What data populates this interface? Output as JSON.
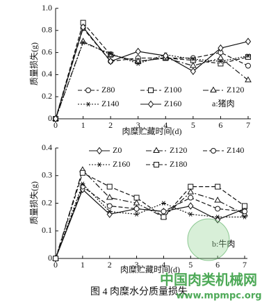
{
  "chart_data": [
    {
      "type": "line",
      "x_label": "肉糜贮藏时间(d)",
      "y_label": "质量损失(g)",
      "annotation": "a:猪肉",
      "x": [
        0,
        1,
        2,
        3,
        4,
        5,
        6,
        7
      ],
      "xlim": [
        0,
        7
      ],
      "xticks": [
        0,
        1,
        2,
        3,
        4,
        5,
        6,
        7
      ],
      "ylim": [
        0,
        1
      ],
      "yticks": [
        0,
        0.2,
        0.4,
        0.6,
        0.8,
        {
          "value": 1,
          "label": "1.0"
        }
      ],
      "series": [
        {
          "name": "Z80",
          "color": "#111111",
          "dash": "dashed",
          "marker": "circle",
          "values": [
            0,
            0.82,
            0.52,
            0.55,
            0.55,
            0.55,
            0.6,
            0.48
          ]
        },
        {
          "name": "Z100",
          "color": "#111111",
          "dash": "dashed",
          "marker": "square",
          "values": [
            0,
            0.87,
            0.58,
            0.52,
            0.55,
            0.53,
            0.5,
            0.56
          ]
        },
        {
          "name": "Z120",
          "color": "#111111",
          "dash": "dashdot",
          "marker": "triangle",
          "values": [
            0,
            0.7,
            0.58,
            0.52,
            0.55,
            0.48,
            0.55,
            0.35
          ]
        },
        {
          "name": "Z140",
          "color": "#111111",
          "dash": "dotted",
          "marker": "star",
          "values": [
            0,
            0.69,
            0.59,
            0.5,
            0.58,
            0.54,
            0.52,
            0.57
          ]
        },
        {
          "name": "Z160",
          "color": "#111111",
          "dash": "solid",
          "marker": "diamond",
          "values": [
            0,
            0.83,
            0.52,
            0.61,
            0.57,
            0.43,
            0.64,
            0.7
          ]
        }
      ]
    },
    {
      "type": "line",
      "x_label": "肉糜贮藏时间(d)",
      "y_label": "质量损失(g)",
      "annotation": "b:牛肉",
      "x": [
        0,
        1,
        2,
        3,
        4,
        5,
        6,
        7
      ],
      "xlim": [
        0,
        7
      ],
      "xticks": [
        0,
        1,
        2,
        3,
        4,
        5,
        6,
        7
      ],
      "ylim": [
        0,
        0.4
      ],
      "yticks": [
        0,
        0.1,
        0.2,
        0.3,
        0.4
      ],
      "series": [
        {
          "name": "Z0",
          "color": "#111111",
          "dash": "solid",
          "marker": "diamond",
          "values": [
            0,
            0.25,
            0.16,
            0.18,
            0.17,
            0.19,
            0.14,
            0.18
          ]
        },
        {
          "name": "Z120",
          "color": "#111111",
          "dash": "dashdot",
          "marker": "triangle",
          "values": [
            0,
            0.32,
            0.22,
            0.2,
            0.15,
            0.24,
            0.21,
            0.16
          ]
        },
        {
          "name": "Z140",
          "color": "#111111",
          "dash": "dashed",
          "marker": "circle",
          "values": [
            0,
            0.26,
            0.19,
            0.18,
            0.17,
            0.22,
            0.18,
            0.17
          ]
        },
        {
          "name": "Z160",
          "color": "#111111",
          "dash": "dotted",
          "marker": "star",
          "values": [
            0,
            0.27,
            0.17,
            0.16,
            0.2,
            0.16,
            0.15,
            0.15
          ]
        },
        {
          "name": "Z180",
          "color": "#111111",
          "dash": "dashed",
          "marker": "square",
          "values": [
            0,
            0.31,
            0.26,
            0.22,
            0.15,
            0.26,
            0.26,
            0.19
          ]
        }
      ]
    }
  ],
  "caption": "图 4   肉糜水分质量损失",
  "watermark": {
    "text": "中国肉类机械网",
    "url": "www.mpmpc.org"
  }
}
